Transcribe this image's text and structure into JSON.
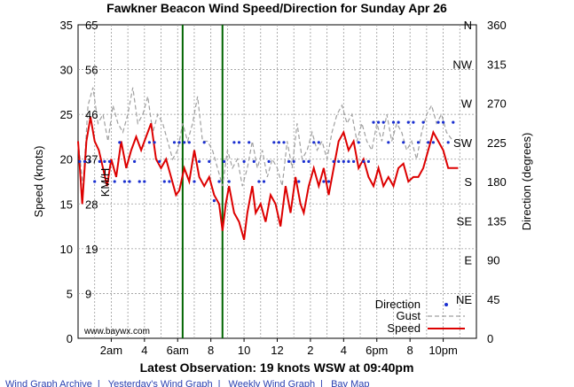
{
  "chart_data": {
    "type": "line",
    "title": "Fawkner Beacon Wind Speed/Direction for Sunday Apr 26",
    "xlabel": "Latest Observation: 19 knots WSW at 09:40pm",
    "ylabel_left": "Speed (knots)",
    "ylabel_right": "Direction (degrees)",
    "ylabel_kmh": "KM/H",
    "watermark": "www.baywx.com",
    "x_ticks": [
      {
        "h": 2,
        "label": "2am"
      },
      {
        "h": 4,
        "label": "4"
      },
      {
        "h": 6,
        "label": "6am"
      },
      {
        "h": 8,
        "label": "8"
      },
      {
        "h": 10,
        "label": "10"
      },
      {
        "h": 12,
        "label": "12"
      },
      {
        "h": 14,
        "label": "2"
      },
      {
        "h": 16,
        "label": "4"
      },
      {
        "h": 18,
        "label": "6pm"
      },
      {
        "h": 20,
        "label": "8"
      },
      {
        "h": 22,
        "label": "10pm"
      }
    ],
    "xlim_hours": [
      0,
      24
    ],
    "knots_ticks": [
      "0",
      "5",
      "10",
      "15",
      "20",
      "25",
      "30",
      "35"
    ],
    "kmh_ticks": [
      {
        "knots": 5,
        "label": "9"
      },
      {
        "knots": 10,
        "label": "19"
      },
      {
        "knots": 15,
        "label": "28"
      },
      {
        "knots": 20,
        "label": "37"
      },
      {
        "knots": 25,
        "label": "46"
      },
      {
        "knots": 30,
        "label": "56"
      },
      {
        "knots": 35,
        "label": "65"
      }
    ],
    "ylim_knots": [
      0,
      35
    ],
    "ylim_degrees": [
      0,
      360
    ],
    "degree_ticks": [
      "0",
      "45",
      "90",
      "135",
      "180",
      "225",
      "270",
      "315",
      "360"
    ],
    "compass_ticks": [
      {
        "deg": 45,
        "label": "NE"
      },
      {
        "deg": 90,
        "label": "E"
      },
      {
        "deg": 135,
        "label": "SE"
      },
      {
        "deg": 180,
        "label": "S"
      },
      {
        "deg": 225,
        "label": "SW"
      },
      {
        "deg": 270,
        "label": "W"
      },
      {
        "deg": 315,
        "label": "NW"
      },
      {
        "deg": 360,
        "label": "N"
      }
    ],
    "markers_hours": [
      6.3,
      8.7
    ],
    "colors": {
      "speed": "#dd0000",
      "gust": "#a0a0a0",
      "direction": "#1a2fd0",
      "marker": "#006400"
    },
    "legend": {
      "position": "bottom-right",
      "direction": "Direction",
      "gust": "Gust",
      "speed": "Speed"
    },
    "series": [
      {
        "name": "Speed",
        "points": [
          [
            0.0,
            22
          ],
          [
            0.25,
            15
          ],
          [
            0.5,
            22
          ],
          [
            0.75,
            24.7
          ],
          [
            1.0,
            22
          ],
          [
            1.25,
            21
          ],
          [
            1.5,
            19
          ],
          [
            1.75,
            17
          ],
          [
            2.0,
            20
          ],
          [
            2.3,
            18
          ],
          [
            2.6,
            22
          ],
          [
            2.9,
            19
          ],
          [
            3.2,
            21
          ],
          [
            3.5,
            22.5
          ],
          [
            3.8,
            21
          ],
          [
            4.1,
            22.5
          ],
          [
            4.4,
            24
          ],
          [
            4.7,
            20
          ],
          [
            5.0,
            19
          ],
          [
            5.3,
            20
          ],
          [
            5.6,
            18
          ],
          [
            5.9,
            16
          ],
          [
            6.1,
            16.5
          ],
          [
            6.4,
            19
          ],
          [
            6.7,
            17.5
          ],
          [
            7.0,
            21
          ],
          [
            7.3,
            18
          ],
          [
            7.6,
            17
          ],
          [
            7.9,
            18
          ],
          [
            8.2,
            16
          ],
          [
            8.5,
            15
          ],
          [
            8.7,
            12
          ],
          [
            8.9,
            15
          ],
          [
            9.1,
            17
          ],
          [
            9.4,
            14
          ],
          [
            9.7,
            13
          ],
          [
            10.0,
            11
          ],
          [
            10.2,
            14
          ],
          [
            10.5,
            17
          ],
          [
            10.7,
            14
          ],
          [
            11.0,
            15
          ],
          [
            11.3,
            13
          ],
          [
            11.6,
            16
          ],
          [
            11.9,
            15
          ],
          [
            12.2,
            12.5
          ],
          [
            12.5,
            17
          ],
          [
            12.8,
            14
          ],
          [
            13.1,
            18
          ],
          [
            13.4,
            15
          ],
          [
            13.6,
            14
          ],
          [
            13.9,
            17
          ],
          [
            14.2,
            19
          ],
          [
            14.5,
            17
          ],
          [
            14.8,
            19
          ],
          [
            15.1,
            16
          ],
          [
            15.4,
            19
          ],
          [
            15.7,
            22
          ],
          [
            16.0,
            23
          ],
          [
            16.3,
            21
          ],
          [
            16.6,
            22
          ],
          [
            16.9,
            19
          ],
          [
            17.2,
            20
          ],
          [
            17.5,
            18
          ],
          [
            17.8,
            17
          ],
          [
            18.1,
            19
          ],
          [
            18.4,
            17
          ],
          [
            18.7,
            18
          ],
          [
            19.0,
            17
          ],
          [
            19.3,
            19
          ],
          [
            19.6,
            19.5
          ],
          [
            19.9,
            17.5
          ],
          [
            20.2,
            18
          ],
          [
            20.5,
            18
          ],
          [
            20.8,
            19
          ],
          [
            21.1,
            21
          ],
          [
            21.4,
            23
          ],
          [
            21.7,
            22
          ],
          [
            22.0,
            21
          ],
          [
            22.3,
            19
          ],
          [
            22.9,
            19
          ]
        ]
      },
      {
        "name": "Gust",
        "points": [
          [
            0.0,
            22
          ],
          [
            0.3,
            17
          ],
          [
            0.6,
            26
          ],
          [
            0.9,
            28
          ],
          [
            1.2,
            24
          ],
          [
            1.5,
            25
          ],
          [
            1.8,
            22
          ],
          [
            2.1,
            26
          ],
          [
            2.4,
            24
          ],
          [
            2.7,
            23
          ],
          [
            3.0,
            25
          ],
          [
            3.3,
            28
          ],
          [
            3.6,
            24
          ],
          [
            3.9,
            25
          ],
          [
            4.2,
            27
          ],
          [
            4.5,
            23
          ],
          [
            4.8,
            25
          ],
          [
            5.1,
            24
          ],
          [
            5.4,
            22
          ],
          [
            5.7,
            20
          ],
          [
            6.0,
            21
          ],
          [
            6.3,
            24
          ],
          [
            6.6,
            22
          ],
          [
            6.9,
            24
          ],
          [
            7.2,
            27
          ],
          [
            7.5,
            22
          ],
          [
            7.8,
            22
          ],
          [
            8.1,
            21
          ],
          [
            8.4,
            19
          ],
          [
            8.7,
            17
          ],
          [
            9.0,
            21
          ],
          [
            9.3,
            19
          ],
          [
            9.6,
            20
          ],
          [
            9.9,
            17
          ],
          [
            10.2,
            19
          ],
          [
            10.5,
            22
          ],
          [
            10.8,
            19
          ],
          [
            11.1,
            21
          ],
          [
            11.4,
            18
          ],
          [
            11.7,
            20
          ],
          [
            12.0,
            19
          ],
          [
            12.3,
            17
          ],
          [
            12.6,
            22
          ],
          [
            12.9,
            19
          ],
          [
            13.2,
            24
          ],
          [
            13.5,
            20
          ],
          [
            13.8,
            21
          ],
          [
            14.1,
            23
          ],
          [
            14.4,
            21
          ],
          [
            14.7,
            22
          ],
          [
            15.0,
            20
          ],
          [
            15.3,
            23
          ],
          [
            15.6,
            25
          ],
          [
            15.9,
            26
          ],
          [
            16.2,
            24
          ],
          [
            16.5,
            25
          ],
          [
            16.8,
            22
          ],
          [
            17.1,
            24
          ],
          [
            17.4,
            22
          ],
          [
            17.7,
            21
          ],
          [
            18.0,
            24
          ],
          [
            18.3,
            22
          ],
          [
            18.6,
            25
          ],
          [
            18.9,
            22
          ],
          [
            19.2,
            24
          ],
          [
            19.5,
            23
          ],
          [
            19.8,
            21
          ],
          [
            20.1,
            22
          ],
          [
            20.4,
            20
          ],
          [
            20.7,
            23
          ],
          [
            21.0,
            25
          ],
          [
            21.3,
            26
          ],
          [
            21.6,
            24
          ],
          [
            21.9,
            25
          ],
          [
            22.2,
            23
          ],
          [
            22.6,
            22
          ]
        ]
      },
      {
        "name": "Direction",
        "points": [
          [
            0.1,
            203
          ],
          [
            0.4,
            203
          ],
          [
            0.7,
            203
          ],
          [
            1.0,
            180
          ],
          [
            1.3,
            203
          ],
          [
            1.6,
            203
          ],
          [
            1.9,
            203
          ],
          [
            2.2,
            180
          ],
          [
            2.5,
            225
          ],
          [
            2.8,
            180
          ],
          [
            3.1,
            180
          ],
          [
            3.4,
            203
          ],
          [
            3.7,
            180
          ],
          [
            4.0,
            180
          ],
          [
            4.3,
            225
          ],
          [
            4.6,
            225
          ],
          [
            4.9,
            203
          ],
          [
            5.2,
            180
          ],
          [
            5.5,
            180
          ],
          [
            5.8,
            225
          ],
          [
            6.1,
            225
          ],
          [
            6.4,
            225
          ],
          [
            6.7,
            225
          ],
          [
            7.0,
            180
          ],
          [
            7.3,
            203
          ],
          [
            7.6,
            225
          ],
          [
            7.9,
            203
          ],
          [
            8.2,
            158
          ],
          [
            8.5,
            180
          ],
          [
            8.8,
            203
          ],
          [
            9.1,
            180
          ],
          [
            9.4,
            225
          ],
          [
            9.7,
            225
          ],
          [
            10.0,
            203
          ],
          [
            10.3,
            225
          ],
          [
            10.6,
            203
          ],
          [
            10.9,
            180
          ],
          [
            11.2,
            180
          ],
          [
            11.5,
            203
          ],
          [
            11.8,
            225
          ],
          [
            12.1,
            225
          ],
          [
            12.4,
            225
          ],
          [
            12.7,
            203
          ],
          [
            13.0,
            203
          ],
          [
            13.3,
            180
          ],
          [
            13.6,
            203
          ],
          [
            13.9,
            203
          ],
          [
            14.2,
            225
          ],
          [
            14.5,
            225
          ],
          [
            14.8,
            180
          ],
          [
            15.1,
            180
          ],
          [
            15.4,
            203
          ],
          [
            15.7,
            203
          ],
          [
            16.0,
            203
          ],
          [
            16.3,
            203
          ],
          [
            16.6,
            203
          ],
          [
            16.9,
            225
          ],
          [
            17.2,
            203
          ],
          [
            17.5,
            203
          ],
          [
            17.8,
            248
          ],
          [
            18.1,
            248
          ],
          [
            18.4,
            248
          ],
          [
            18.7,
            225
          ],
          [
            19.0,
            248
          ],
          [
            19.3,
            248
          ],
          [
            19.6,
            225
          ],
          [
            19.9,
            248
          ],
          [
            20.2,
            248
          ],
          [
            20.5,
            225
          ],
          [
            20.8,
            248
          ],
          [
            21.1,
            225
          ],
          [
            21.4,
            225
          ],
          [
            21.7,
            248
          ],
          [
            22.0,
            248
          ],
          [
            22.3,
            225
          ],
          [
            22.6,
            248
          ]
        ]
      }
    ]
  },
  "footer": {
    "links": [
      "Wind Graph Archive",
      "Yesterday's Wind Graph",
      "Weekly Wind Graph",
      "Bay Map"
    ]
  }
}
